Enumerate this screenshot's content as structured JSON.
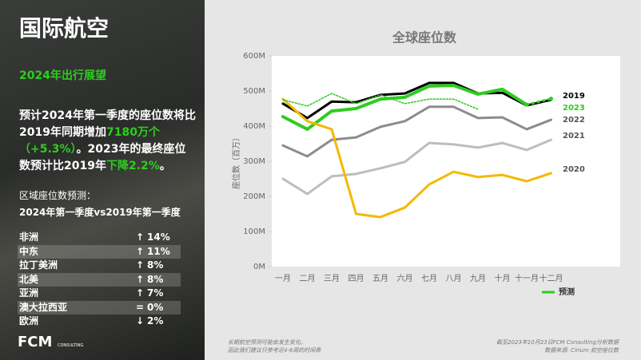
{
  "sidebar": {
    "title": "国际航空",
    "subtitle": "2024年出行展望",
    "paragraph": [
      {
        "text": "预计2024年第一季度的座位数将比2019年同期增加",
        "highlight": false
      },
      {
        "text": "7180万个（+5.3%）",
        "highlight": true
      },
      {
        "text": "。2023年的最终座位数预计比2019年",
        "highlight": false
      },
      {
        "text": "下降2.2%",
        "highlight": true
      },
      {
        "text": "。",
        "highlight": false
      }
    ],
    "region_heading": "区域座位数预测：",
    "region_subheading": "2024年第一季度vs2019年第一季度",
    "regions": [
      {
        "name": "非洲",
        "symbol": "↑",
        "change": "14%"
      },
      {
        "name": "中东",
        "symbol": "↑",
        "change": "11%"
      },
      {
        "name": "拉丁美洲",
        "symbol": "↑",
        "change": "8%"
      },
      {
        "name": "北美",
        "symbol": "↑",
        "change": "8%"
      },
      {
        "name": "亚洲",
        "symbol": "↑",
        "change": "7%"
      },
      {
        "name": "澳大拉西亚",
        "symbol": "=",
        "change": "0%"
      },
      {
        "name": "欧洲",
        "symbol": "↓",
        "change": "2%"
      }
    ],
    "logo": "FCM",
    "logo_sub": "CONSULTING"
  },
  "footer": {
    "left": [
      "长期航空预测可能会发生变化。",
      "因此我们建议只参考近4-6周的时间表"
    ],
    "right": [
      "截至2023年10月23日FCM Consulting分析数据",
      "数据来源: Cirium 航空座位数"
    ]
  },
  "chart_data": {
    "type": "line",
    "title": "全球座位数",
    "y_label": "座位数（百万）",
    "categories": [
      "一月",
      "二月",
      "三月",
      "四月",
      "五月",
      "六月",
      "七月",
      "八月",
      "九月",
      "十月",
      "十一月",
      "十二月"
    ],
    "ylim": [
      0,
      600
    ],
    "yticks": [
      {
        "value": 0,
        "label": "0M"
      },
      {
        "value": 100,
        "label": "100M"
      },
      {
        "value": 200,
        "label": "200M"
      },
      {
        "value": 300,
        "label": "300M"
      },
      {
        "value": 400,
        "label": "400M"
      },
      {
        "value": 500,
        "label": "500M"
      },
      {
        "value": 600,
        "label": "600M"
      }
    ],
    "grid": false,
    "legend": "bottom-right",
    "series": [
      {
        "name": "2019",
        "color": "#000000",
        "direct_label": true,
        "values": [
          464,
          423,
          470,
          468,
          489,
          493,
          523,
          523,
          493,
          495,
          459,
          475
        ]
      },
      {
        "name": "2023",
        "color": "#2ecc1f",
        "direct_label": true,
        "values": [
          427,
          391,
          443,
          450,
          477,
          482,
          514,
          516,
          491,
          505,
          461,
          null
        ]
      },
      {
        "name": "2022",
        "color": "#8c8c8c",
        "direct_label": true,
        "values": [
          345,
          314,
          361,
          368,
          398,
          414,
          455,
          455,
          423,
          425,
          391,
          418
        ]
      },
      {
        "name": "2021",
        "color": "#bdbdbd",
        "direct_label": true,
        "values": [
          250,
          207,
          257,
          264,
          280,
          298,
          352,
          348,
          339,
          352,
          332,
          361
        ]
      },
      {
        "name": "2020",
        "color": "#f5b800",
        "direct_label": true,
        "values": [
          477,
          414,
          391,
          150,
          141,
          168,
          234,
          270,
          255,
          261,
          243,
          266
        ]
      },
      {
        "color": "#2ecc1f",
        "line_style": "dotted",
        "values": [
          475,
          457,
          493,
          464,
          489,
          464,
          477,
          477,
          448,
          null,
          null,
          null
        ]
      },
      {
        "name": "预测",
        "color": "#2ecc1f",
        "line_style": "dotted",
        "markers": true,
        "values": [
          null,
          null,
          null,
          null,
          null,
          null,
          null,
          null,
          null,
          null,
          461,
          478
        ]
      }
    ]
  }
}
